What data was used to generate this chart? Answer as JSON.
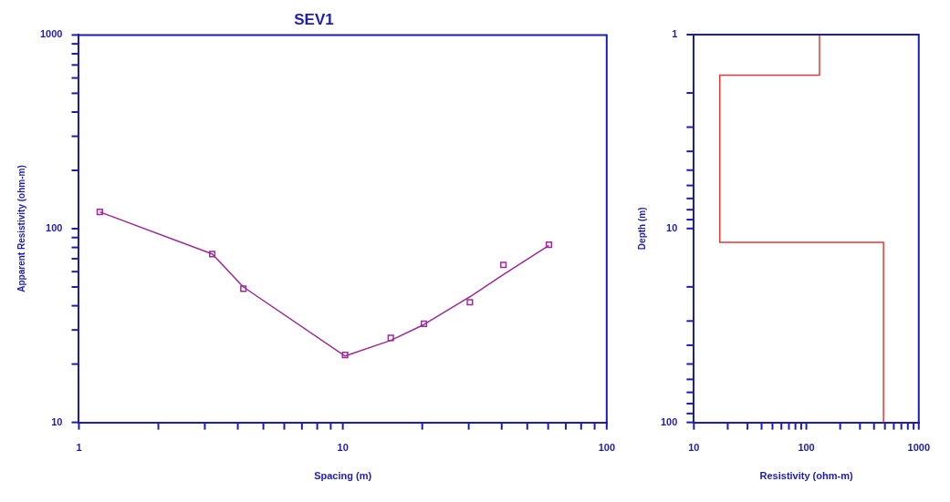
{
  "chart_data": [
    {
      "type": "scatter",
      "title": "SEV1",
      "xlabel": "Spacing (m)",
      "ylabel": "Apparent Resistivity (ohm-m)",
      "log": "xy",
      "xlim": [
        1,
        100
      ],
      "ylim": [
        10,
        1000
      ],
      "xticks": [
        1,
        {
          "value": 2,
          "label": null
        },
        {
          "value": 3,
          "label": null
        },
        {
          "value": 4,
          "label": null
        },
        {
          "value": 5,
          "label": null
        },
        {
          "value": 6,
          "label": null
        },
        {
          "value": 7,
          "label": null
        },
        {
          "value": 8,
          "label": null
        },
        {
          "value": 9,
          "label": null
        },
        10,
        {
          "value": 20,
          "label": null
        },
        {
          "value": 30,
          "label": null
        },
        {
          "value": 40,
          "label": null
        },
        {
          "value": 50,
          "label": null
        },
        {
          "value": 60,
          "label": null
        },
        {
          "value": 70,
          "label": null
        },
        {
          "value": 80,
          "label": null
        },
        {
          "value": 90,
          "label": null
        },
        100
      ],
      "yticks": [
        10,
        {
          "value": 20,
          "label": null
        },
        {
          "value": 30,
          "label": null
        },
        {
          "value": 40,
          "label": null
        },
        {
          "value": 50,
          "label": null
        },
        {
          "value": 60,
          "label": null
        },
        {
          "value": 70,
          "label": null
        },
        {
          "value": 80,
          "label": null
        },
        {
          "value": 90,
          "label": null
        },
        100,
        {
          "value": 200,
          "label": null
        },
        {
          "value": 300,
          "label": null
        },
        {
          "value": 400,
          "label": null
        },
        {
          "value": 500,
          "label": null
        },
        {
          "value": 600,
          "label": null
        },
        {
          "value": 700,
          "label": null
        },
        {
          "value": 800,
          "label": null
        },
        {
          "value": 900,
          "label": null
        },
        1000
      ],
      "series": [
        {
          "marker": "square",
          "color": "#a0289c",
          "x": [
            1.2,
            3.2,
            4.2,
            10.2,
            15.2,
            20.3,
            30.3,
            40.6,
            60.4
          ],
          "values": [
            122,
            74,
            49,
            22.3,
            27.3,
            32.3,
            41.7,
            65,
            82.6
          ]
        },
        {
          "type": "line",
          "marker": "none",
          "color": "#9c2a96",
          "x": [
            1.2,
            3.2,
            4.2,
            10.2,
            15.2,
            20.3,
            30.3,
            40.6,
            60.4
          ],
          "values": [
            122,
            74,
            50,
            22,
            26.5,
            32,
            44.5,
            58,
            82
          ]
        }
      ]
    },
    {
      "type": "line",
      "xlabel": "Resistivity (ohm-m)",
      "ylabel": "Depth (m)",
      "log": "xy",
      "xlim": [
        10,
        1000
      ],
      "ylim": [
        100,
        1
      ],
      "xticks": [
        10,
        {
          "value": 20,
          "label": null
        },
        {
          "value": 30,
          "label": null
        },
        {
          "value": 40,
          "label": null
        },
        {
          "value": 50,
          "label": null
        },
        {
          "value": 60,
          "label": null
        },
        {
          "value": 70,
          "label": null
        },
        {
          "value": 80,
          "label": null
        },
        {
          "value": 90,
          "label": null
        },
        100,
        {
          "value": 200,
          "label": null
        },
        {
          "value": 300,
          "label": null
        },
        {
          "value": 400,
          "label": null
        },
        {
          "value": 500,
          "label": null
        },
        {
          "value": 600,
          "label": null
        },
        {
          "value": 700,
          "label": null
        },
        {
          "value": 800,
          "label": null
        },
        {
          "value": 900,
          "label": null
        },
        1000
      ],
      "yticks": [
        1,
        {
          "value": 2,
          "label": null
        },
        {
          "value": 3,
          "label": null
        },
        {
          "value": 4,
          "label": null
        },
        {
          "value": 5,
          "label": null
        },
        {
          "value": 6,
          "label": null
        },
        {
          "value": 7,
          "label": null
        },
        {
          "value": 8,
          "label": null
        },
        {
          "value": 9,
          "label": null
        },
        10,
        {
          "value": 20,
          "label": null
        },
        {
          "value": 30,
          "label": null
        },
        {
          "value": 40,
          "label": null
        },
        {
          "value": 50,
          "label": null
        },
        {
          "value": 60,
          "label": null
        },
        {
          "value": 70,
          "label": null
        },
        {
          "value": 80,
          "label": null
        },
        {
          "value": 90,
          "label": null
        },
        100
      ],
      "series": [
        {
          "marker": "none",
          "color": "#e53935",
          "x": [
            131,
            131,
            17,
            17,
            486,
            486
          ],
          "values": [
            1,
            1.62,
            1.62,
            11.8,
            11.8,
            100
          ]
        }
      ]
    }
  ]
}
